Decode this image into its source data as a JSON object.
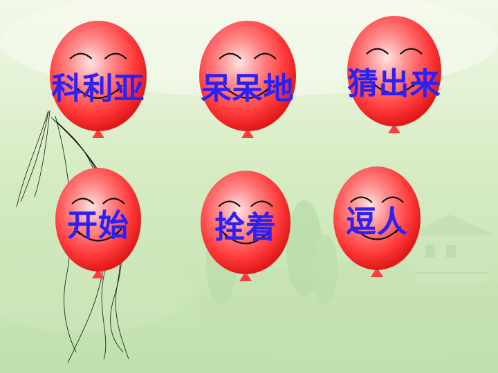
{
  "slide": {
    "background_colors": [
      "#f1f7e4",
      "#c9e6b4",
      "#b6dba8"
    ],
    "balloon_color": "#ff3b3b",
    "text_color": "#2f1ff0"
  },
  "balloons": [
    {
      "word": "科利亚"
    },
    {
      "word": "呆呆地"
    },
    {
      "word": "猜出来"
    },
    {
      "word": "开始"
    },
    {
      "word": "拴着"
    },
    {
      "word": "逗人"
    }
  ]
}
